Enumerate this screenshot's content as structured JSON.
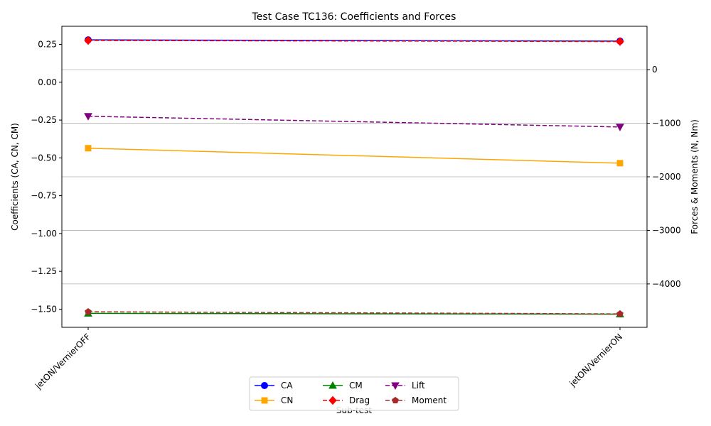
{
  "chart_data": {
    "type": "line",
    "title": "Test Case TC136: Coefficients and Forces",
    "xlabel": "Sub-test",
    "ylabel_left": "Coefficients (CA, CN, CM)",
    "ylabel_right": "Forces & Moments (N, Nm)",
    "categories": [
      "jetON/VernierOFF",
      "jetON/VernierON"
    ],
    "ylim_left": [
      -1.62,
      0.37
    ],
    "ylim_right": [
      -4810,
      810
    ],
    "yticks_left": [
      0.25,
      0.0,
      -0.25,
      -0.5,
      -0.75,
      -1.0,
      -1.25,
      -1.5
    ],
    "yticks_left_labels": [
      "0.25",
      "0.00",
      "−0.25",
      "−0.50",
      "−0.75",
      "−1.00",
      "−1.25",
      "−1.50"
    ],
    "yticks_right": [
      0,
      -1000,
      -2000,
      -3000,
      -4000
    ],
    "yticks_right_labels": [
      "0",
      "−1000",
      "−2000",
      "−3000",
      "−4000"
    ],
    "grid": "right-axis horizontal",
    "legend_placement": "bottom-center",
    "series": [
      {
        "name": "CA",
        "axis": "left",
        "values": [
          0.28,
          0.272
        ],
        "color": "#0000ff",
        "dash": "solid",
        "marker": "circle"
      },
      {
        "name": "CN",
        "axis": "left",
        "values": [
          -0.436,
          -0.535
        ],
        "color": "#ffa500",
        "dash": "solid",
        "marker": "square"
      },
      {
        "name": "CM",
        "axis": "left",
        "values": [
          -1.528,
          -1.533
        ],
        "color": "#008000",
        "dash": "solid",
        "marker": "triangle-up"
      },
      {
        "name": "Drag",
        "axis": "right",
        "values": [
          545,
          525
        ],
        "color": "#ff0000",
        "dash": "dashed",
        "marker": "diamond"
      },
      {
        "name": "Lift",
        "axis": "right",
        "values": [
          -870,
          -1070
        ],
        "color": "#800080",
        "dash": "dashed",
        "marker": "triangle-down"
      },
      {
        "name": "Moment",
        "axis": "right",
        "values": [
          -4520,
          -4560
        ],
        "color": "#a52a2a",
        "dash": "dashed",
        "marker": "pentagon"
      }
    ]
  }
}
